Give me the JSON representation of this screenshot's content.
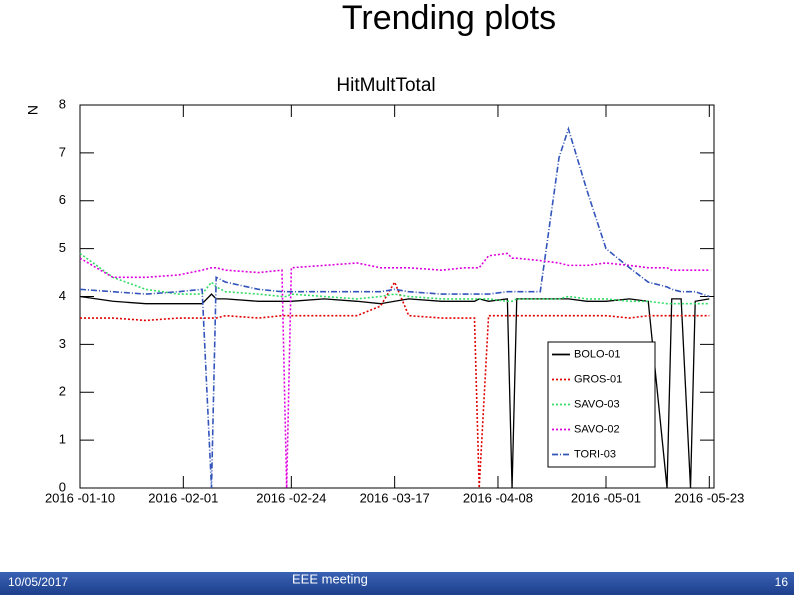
{
  "slide_title": "Trending plots",
  "chart_data": {
    "type": "line",
    "title": "HitMultTotal",
    "y_label": "N",
    "x": [
      "2016-01-10",
      "2016-01-17",
      "2016-01-24",
      "2016-01-31",
      "2016-02-05",
      "2016-02-07",
      "2016-02-08",
      "2016-02-10",
      "2016-02-17",
      "2016-02-22",
      "2016-02-23",
      "2016-02-24",
      "2016-03-02",
      "2016-03-09",
      "2016-03-14",
      "2016-03-17",
      "2016-03-20",
      "2016-03-27",
      "2016-04-01",
      "2016-04-03",
      "2016-04-04",
      "2016-04-06",
      "2016-04-10",
      "2016-04-11",
      "2016-04-12",
      "2016-04-17",
      "2016-04-21",
      "2016-04-23",
      "2016-04-27",
      "2016-05-01",
      "2016-05-06",
      "2016-05-10",
      "2016-05-14",
      "2016-05-15",
      "2016-05-17",
      "2016-05-19",
      "2016-05-20",
      "2016-05-23"
    ],
    "series": [
      {
        "name": "BOLO-01",
        "color": "#000000",
        "line_style": "solid",
        "values": [
          4.0,
          3.9,
          3.85,
          3.85,
          3.85,
          4.05,
          3.95,
          3.95,
          3.9,
          3.9,
          3.9,
          3.9,
          3.95,
          3.9,
          3.85,
          3.9,
          3.95,
          3.9,
          3.9,
          3.9,
          3.95,
          3.9,
          3.95,
          0,
          3.95,
          3.95,
          3.95,
          3.95,
          3.9,
          3.9,
          3.95,
          3.9,
          0,
          3.95,
          3.95,
          0,
          3.9,
          3.95
        ]
      },
      {
        "name": "GROS-01",
        "color": "#e00000",
        "line_style": "dotted",
        "values": [
          3.55,
          3.55,
          3.5,
          3.55,
          3.55,
          3.55,
          3.55,
          3.6,
          3.55,
          3.6,
          3.6,
          3.6,
          3.6,
          3.6,
          3.8,
          4.3,
          3.6,
          3.55,
          3.55,
          3.55,
          0,
          3.6,
          3.6,
          3.6,
          3.6,
          3.6,
          3.6,
          3.6,
          3.6,
          3.6,
          3.55,
          3.6,
          3.6,
          3.6,
          3.6,
          3.6,
          3.6,
          3.6
        ]
      },
      {
        "name": "SAVO-03",
        "color": "#33dd66",
        "line_style": "dotted",
        "values": [
          4.9,
          4.4,
          4.15,
          4.05,
          4.05,
          4.3,
          4.2,
          4.1,
          4.05,
          4.0,
          4.0,
          4.05,
          4.0,
          3.95,
          4.0,
          4.05,
          4.0,
          3.95,
          3.95,
          3.95,
          3.95,
          3.95,
          3.9,
          3.9,
          3.95,
          3.95,
          3.95,
          4.0,
          3.95,
          3.95,
          3.9,
          3.9,
          3.85,
          3.85,
          3.85,
          3.85,
          3.85,
          3.85
        ]
      },
      {
        "name": "SAVO-02",
        "color": "#dd00dd",
        "line_style": "dotted",
        "values": [
          4.8,
          4.4,
          4.4,
          4.45,
          4.55,
          4.6,
          4.6,
          4.55,
          4.5,
          4.55,
          0,
          4.6,
          4.65,
          4.7,
          4.6,
          4.6,
          4.6,
          4.55,
          4.6,
          4.6,
          4.6,
          4.85,
          4.9,
          4.8,
          4.8,
          4.75,
          4.7,
          4.65,
          4.65,
          4.7,
          4.65,
          4.6,
          4.6,
          4.55,
          4.55,
          4.55,
          4.55,
          4.55
        ]
      },
      {
        "name": "TORI-03",
        "color": "#3355bb",
        "line_style": "dashdot",
        "values": [
          4.15,
          4.1,
          4.05,
          4.1,
          4.15,
          0,
          4.4,
          4.3,
          4.15,
          4.1,
          4.1,
          4.1,
          4.1,
          4.1,
          4.1,
          4.15,
          4.1,
          4.05,
          4.05,
          4.05,
          4.05,
          4.05,
          4.1,
          4.1,
          4.1,
          4.1,
          6.9,
          7.5,
          6.2,
          5.0,
          4.6,
          4.3,
          4.2,
          4.15,
          4.1,
          4.1,
          4.1,
          4.0
        ]
      }
    ],
    "xlim": [
      "2016-01-10",
      "2016-05-24"
    ],
    "xticks": [
      {
        "value": "2016-01-10",
        "label": "2016 -01-10"
      },
      {
        "value": "2016-02-01",
        "label": "2016 -02-01"
      },
      {
        "value": "2016-02-24",
        "label": "2016 -02-24"
      },
      {
        "value": "2016-03-17",
        "label": "2016 -03-17"
      },
      {
        "value": "2016-04-08",
        "label": "2016 -04-08"
      },
      {
        "value": "2016-05-01",
        "label": "2016 -05-01"
      },
      {
        "value": "2016-05-23",
        "label": "2016 -05-23"
      }
    ],
    "ylim": [
      0,
      8
    ],
    "yticks": [
      0,
      1,
      2,
      3,
      4,
      5,
      6,
      7,
      8
    ],
    "legend": "bottom-right"
  },
  "footer": {
    "date": "10/05/2017",
    "event": "EEE meeting",
    "page": "16"
  }
}
